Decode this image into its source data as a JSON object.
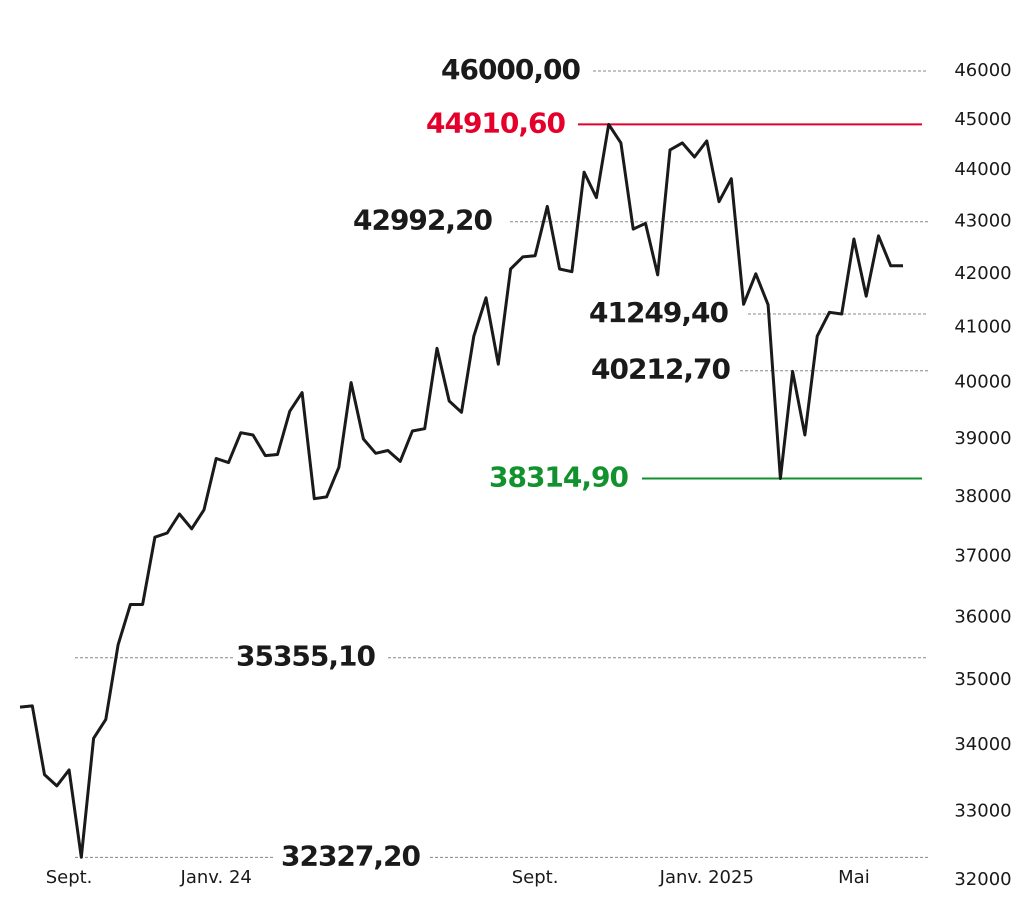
{
  "chart_data": {
    "type": "line",
    "log_y": true,
    "ylim": [
      32000,
      46000
    ],
    "yticks": [
      32000,
      33000,
      34000,
      35000,
      36000,
      37000,
      38000,
      39000,
      40000,
      41000,
      42000,
      43000,
      44000,
      45000,
      46000
    ],
    "categories": [
      null,
      null,
      null,
      null,
      "Sept.",
      null,
      null,
      null,
      null,
      null,
      null,
      null,
      null,
      null,
      null,
      null,
      "Janv. 24",
      null,
      null,
      null,
      null,
      null,
      null,
      null,
      null,
      null,
      null,
      null,
      null,
      null,
      null,
      null,
      null,
      null,
      null,
      null,
      null,
      null,
      null,
      null,
      null,
      null,
      "Sept.",
      null,
      null,
      null,
      null,
      null,
      null,
      null,
      null,
      null,
      null,
      null,
      null,
      null,
      "Janv. 2025",
      null,
      null,
      null,
      null,
      null,
      null,
      null,
      null,
      null,
      null,
      null,
      "Mai",
      null,
      null,
      null,
      null
    ],
    "series": [
      {
        "color": "#1a1a1a",
        "values": [
          34580,
          34600,
          33550,
          33380,
          33620,
          32327.2,
          34100,
          34390,
          35560,
          36210,
          36210,
          37320,
          37390,
          37710,
          37460,
          37780,
          38660,
          38590,
          39110,
          39070,
          38710,
          38730,
          39490,
          39820,
          37970,
          38000,
          38510,
          40000,
          39000,
          38750,
          38800,
          38610,
          39140,
          39180,
          40620,
          39670,
          39470,
          40840,
          41550,
          40330,
          42090,
          42320,
          42340,
          43290,
          42090,
          42040,
          43960,
          43460,
          44910.6,
          44540,
          42850,
          42960,
          41980,
          44400,
          44540,
          44260,
          44580,
          43380,
          43830,
          41430,
          42000,
          41420,
          38314.9,
          40200,
          39070,
          40840,
          41280,
          41250,
          42660,
          41580,
          42720,
          42150,
          42150
        ]
      }
    ],
    "reference_lines": [
      {
        "value": 46000,
        "label": "46000,00",
        "color": "#888888",
        "dashed": true
      },
      {
        "value": 44910.6,
        "label": "44910,60",
        "color": "#e4002b",
        "dashed": false
      },
      {
        "value": 42992.2,
        "label": "42992,20",
        "color": "#888888",
        "dashed": true
      },
      {
        "value": 41249.4,
        "label": "41249,40",
        "color": "#888888",
        "dashed": true
      },
      {
        "value": 40212.7,
        "label": "40212,70",
        "color": "#888888",
        "dashed": true
      },
      {
        "value": 38314.9,
        "label": "38314,90",
        "color": "#12922e",
        "dashed": false
      },
      {
        "value": 35355.1,
        "label": "35355,10",
        "color": "#888888",
        "dashed": true
      },
      {
        "value": 32327.2,
        "label": "32327,20",
        "color": "#888888",
        "dashed": true
      }
    ]
  }
}
